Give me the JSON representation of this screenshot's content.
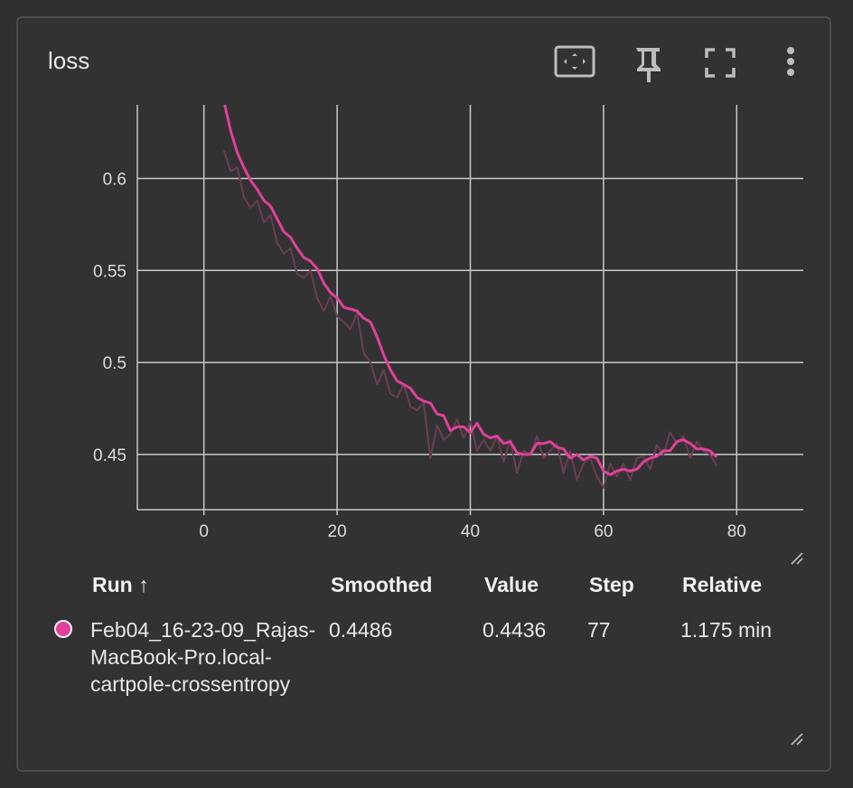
{
  "card": {
    "title": "loss"
  },
  "toolbar": {
    "fit_icon": "fit-domain-icon",
    "pin_icon": "pin-icon",
    "fullscreen_icon": "fullscreen-icon",
    "more_icon": "more-vert-icon"
  },
  "chart_data": {
    "type": "line",
    "xlim": [
      -10,
      90
    ],
    "ylim": [
      0.42,
      0.64
    ],
    "x_ticks": [
      0,
      20,
      40,
      60,
      80
    ],
    "y_ticks": [
      0.45,
      0.5,
      0.55,
      0.6
    ],
    "x_tick_labels": [
      "0",
      "20",
      "40",
      "60",
      "80"
    ],
    "y_tick_labels": [
      "0.45",
      "0.5",
      "0.55",
      "0.6"
    ],
    "grid": true,
    "series": [
      {
        "role": "smoothed",
        "color": "#e0409a",
        "x": [
          3,
          4,
          5,
          6,
          7,
          8,
          9,
          10,
          11,
          12,
          13,
          14,
          15,
          16,
          17,
          18,
          19,
          20,
          21,
          22,
          23,
          24,
          25,
          26,
          27,
          28,
          29,
          30,
          31,
          32,
          33,
          34,
          35,
          36,
          37,
          38,
          39,
          40,
          41,
          42,
          43,
          44,
          45,
          46,
          47,
          48,
          49,
          50,
          51,
          52,
          53,
          54,
          55,
          56,
          57,
          58,
          59,
          60,
          61,
          62,
          63,
          64,
          65,
          66,
          67,
          68,
          69,
          70,
          71,
          72,
          73,
          74,
          75,
          76,
          77
        ],
        "values": [
          0.642,
          0.626,
          0.614,
          0.606,
          0.599,
          0.594,
          0.588,
          0.585,
          0.578,
          0.571,
          0.568,
          0.562,
          0.557,
          0.555,
          0.551,
          0.543,
          0.538,
          0.535,
          0.53,
          0.529,
          0.528,
          0.524,
          0.522,
          0.514,
          0.504,
          0.496,
          0.49,
          0.488,
          0.486,
          0.481,
          0.479,
          0.478,
          0.472,
          0.471,
          0.463,
          0.465,
          0.465,
          0.462,
          0.467,
          0.461,
          0.459,
          0.46,
          0.456,
          0.457,
          0.451,
          0.45,
          0.45,
          0.456,
          0.456,
          0.457,
          0.454,
          0.453,
          0.448,
          0.45,
          0.447,
          0.449,
          0.448,
          0.441,
          0.439,
          0.441,
          0.442,
          0.441,
          0.442,
          0.446,
          0.448,
          0.449,
          0.452,
          0.452,
          0.457,
          0.458,
          0.456,
          0.453,
          0.453,
          0.452,
          0.4486
        ]
      },
      {
        "role": "raw",
        "color": "#6a3e52",
        "x": [
          3,
          4,
          5,
          6,
          7,
          8,
          9,
          10,
          11,
          12,
          13,
          14,
          15,
          16,
          17,
          18,
          19,
          20,
          21,
          22,
          23,
          24,
          25,
          26,
          27,
          28,
          29,
          30,
          31,
          32,
          33,
          34,
          35,
          36,
          37,
          38,
          39,
          40,
          41,
          42,
          43,
          44,
          45,
          46,
          47,
          48,
          49,
          50,
          51,
          52,
          53,
          54,
          55,
          56,
          57,
          58,
          59,
          60,
          61,
          62,
          63,
          64,
          65,
          66,
          67,
          68,
          69,
          70,
          71,
          72,
          73,
          74,
          75,
          76,
          77
        ],
        "values": [
          0.615,
          0.604,
          0.606,
          0.59,
          0.584,
          0.588,
          0.576,
          0.58,
          0.565,
          0.559,
          0.562,
          0.548,
          0.546,
          0.55,
          0.535,
          0.528,
          0.536,
          0.525,
          0.522,
          0.518,
          0.527,
          0.505,
          0.5,
          0.488,
          0.496,
          0.483,
          0.481,
          0.488,
          0.476,
          0.474,
          0.478,
          0.448,
          0.466,
          0.458,
          0.461,
          0.469,
          0.459,
          0.468,
          0.452,
          0.458,
          0.452,
          0.46,
          0.446,
          0.458,
          0.44,
          0.452,
          0.45,
          0.46,
          0.448,
          0.452,
          0.456,
          0.44,
          0.452,
          0.436,
          0.445,
          0.448,
          0.438,
          0.432,
          0.445,
          0.438,
          0.445,
          0.436,
          0.448,
          0.449,
          0.442,
          0.455,
          0.45,
          0.462,
          0.456,
          0.46,
          0.448,
          0.457,
          0.452,
          0.45,
          0.4436
        ]
      }
    ]
  },
  "table": {
    "headers": {
      "run": "Run ↑",
      "smoothed": "Smoothed",
      "value": "Value",
      "step": "Step",
      "relative": "Relative"
    },
    "row": {
      "run_color": "#e0409a",
      "run": "Feb04_16-23-09_Rajas-MacBook-Pro.local-cartpole-crossentropy",
      "smoothed": "0.4486",
      "value": "0.4436",
      "step": "77",
      "relative": "1.175 min"
    }
  }
}
